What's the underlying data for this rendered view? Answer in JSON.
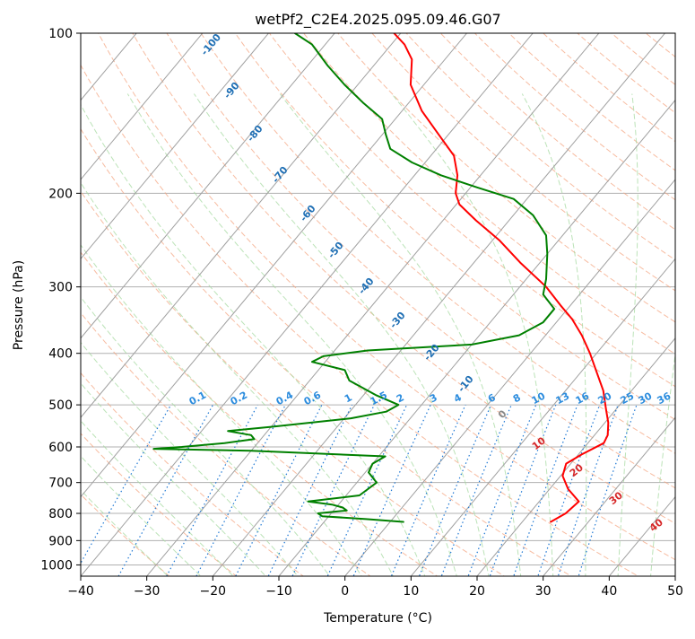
{
  "chart_data": {
    "type": "line",
    "title": "wetPf2_C2E4.2025.095.09.46.G07",
    "xlabel": "Temperature (°C)",
    "ylabel": "Pressure (hPa)",
    "xlim": [
      -40,
      50
    ],
    "ylim": [
      1050,
      100
    ],
    "y_scale": "log",
    "x_ticks": [
      "−40",
      "−30",
      "−20",
      "−10",
      "0",
      "10",
      "20",
      "30",
      "40",
      "50"
    ],
    "y_ticks": [
      "100",
      "200",
      "300",
      "400",
      "500",
      "600",
      "700",
      "800",
      "900",
      "1000"
    ],
    "grid": true,
    "colors": {
      "temperature": "#ff0000",
      "dewpoint": "#008000",
      "isotherm": "#a0a0a0",
      "dry_adiabat": "#f4a582",
      "moist_adiabat": "#a6d9a0",
      "mixing_ratio": "#1f78d4",
      "dry_adiabat_label": "#d62728",
      "isotherm_label": "#1f6fb4"
    },
    "isotherm_labels": [
      "-100",
      "-90",
      "-80",
      "-70",
      "-60",
      "-50",
      "-40",
      "-30",
      "-20",
      "-10",
      "0"
    ],
    "dry_adiabat_labels": [
      "10",
      "20",
      "30",
      "40"
    ],
    "mixing_ratio_labels": [
      "0.1",
      "0.2",
      "0.4",
      "0.6",
      "1",
      "1.5",
      "2",
      "3",
      "4",
      "6",
      "8",
      "10",
      "13",
      "16",
      "20",
      "25",
      "30",
      "36"
    ],
    "series": [
      {
        "key": "temperature",
        "points": [
          [
            830,
            24.3
          ],
          [
            800,
            25.5
          ],
          [
            760,
            26.0
          ],
          [
            720,
            22.8
          ],
          [
            680,
            20.3
          ],
          [
            645,
            19.3
          ],
          [
            620,
            20.5
          ],
          [
            590,
            22.4
          ],
          [
            570,
            22.0
          ],
          [
            540,
            20.5
          ],
          [
            510,
            18.5
          ],
          [
            470,
            15.7
          ],
          [
            430,
            12.0
          ],
          [
            400,
            9.0
          ],
          [
            370,
            5.5
          ],
          [
            345,
            2.0
          ],
          [
            325,
            -1.5
          ],
          [
            300,
            -6.0
          ],
          [
            270,
            -13.0
          ],
          [
            245,
            -19.0
          ],
          [
            225,
            -25.0
          ],
          [
            210,
            -29.5
          ],
          [
            200,
            -31.5
          ],
          [
            185,
            -33.5
          ],
          [
            170,
            -36.5
          ],
          [
            155,
            -41.5
          ],
          [
            140,
            -47.0
          ],
          [
            125,
            -52.0
          ],
          [
            112,
            -55.0
          ],
          [
            105,
            -58.0
          ],
          [
            100,
            -61.0
          ]
        ]
      },
      {
        "key": "dewpoint",
        "points": [
          [
            830,
            2.0
          ],
          [
            820,
            -4.0
          ],
          [
            810,
            -11.0
          ],
          [
            800,
            -12.0
          ],
          [
            790,
            -8.0
          ],
          [
            780,
            -9.0
          ],
          [
            770,
            -11.0
          ],
          [
            760,
            -15.0
          ],
          [
            740,
            -8.0
          ],
          [
            700,
            -7.0
          ],
          [
            670,
            -9.5
          ],
          [
            645,
            -10.0
          ],
          [
            625,
            -9.0
          ],
          [
            610,
            -30.0
          ],
          [
            605,
            -45.0
          ],
          [
            600,
            -41.0
          ],
          [
            590,
            -35.0
          ],
          [
            580,
            -31.0
          ],
          [
            570,
            -32.0
          ],
          [
            560,
            -36.0
          ],
          [
            550,
            -30.0
          ],
          [
            530,
            -19.0
          ],
          [
            515,
            -14.5
          ],
          [
            500,
            -13.5
          ],
          [
            480,
            -18.0
          ],
          [
            450,
            -24.0
          ],
          [
            430,
            -26.0
          ],
          [
            415,
            -32.0
          ],
          [
            405,
            -31.0
          ],
          [
            395,
            -25.0
          ],
          [
            385,
            -10.0
          ],
          [
            370,
            -4.0
          ],
          [
            350,
            -2.0
          ],
          [
            330,
            -2.0
          ],
          [
            310,
            -5.5
          ],
          [
            290,
            -7.0
          ],
          [
            260,
            -10.0
          ],
          [
            240,
            -12.5
          ],
          [
            220,
            -17.0
          ],
          [
            205,
            -22.0
          ],
          [
            195,
            -29.0
          ],
          [
            185,
            -36.0
          ],
          [
            175,
            -42.0
          ],
          [
            165,
            -47.0
          ],
          [
            155,
            -49.5
          ],
          [
            145,
            -52.0
          ],
          [
            135,
            -57.0
          ],
          [
            125,
            -62.0
          ],
          [
            115,
            -67.0
          ],
          [
            105,
            -72.0
          ],
          [
            100,
            -76.0
          ]
        ]
      }
    ]
  }
}
